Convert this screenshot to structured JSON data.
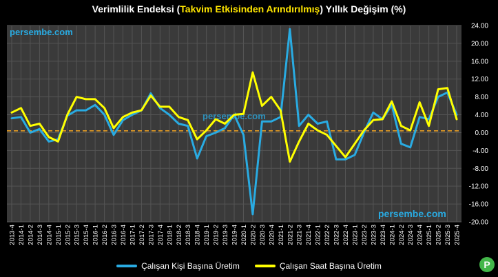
{
  "title": {
    "part1": "Verimlilik Endeksi (",
    "highlight": "Takvim Etkisinden Arındırılmış",
    "part2": ") Yıllık Değişim (%)"
  },
  "watermarks": [
    "persembe.com",
    "persembe.com",
    "persembe.com"
  ],
  "logo_letter": "P",
  "colors": {
    "background": "#000000",
    "plot_background": "#3a3a3a",
    "grid": "#555555",
    "series_person": "#29abe2",
    "series_hour": "#ffff00",
    "zero_line": "#f5a623",
    "watermark": "#29abe2"
  },
  "chart_data": {
    "type": "line",
    "title": "Verimlilik Endeksi (Takvim Etkisinden Arındırılmış) Yıllık Değişim (%)",
    "xlabel": "",
    "ylabel": "",
    "ylim": [
      -20,
      24
    ],
    "yticks": [
      "24.00",
      "20.00",
      "16.00",
      "12.00",
      "8.00",
      "4.00",
      "0.00",
      "-4.00",
      "-8.00",
      "-12.00",
      "-16.00",
      "-20.00"
    ],
    "grid": true,
    "legend_position": "bottom",
    "reference_line": 0.4,
    "categories": [
      "2013-4",
      "2014-1",
      "2014-2",
      "2014-3",
      "2014-4",
      "2015-1",
      "2015-2",
      "2015-3",
      "2015-4",
      "2016-1",
      "2016-2",
      "2016-3",
      "2016-4",
      "2017-1",
      "2017-2",
      "2017-3",
      "2017-4",
      "2018-1",
      "2018-2",
      "2018-3",
      "2018-4",
      "2019-1",
      "2019-2",
      "2019-3",
      "2019-4",
      "2020-1",
      "2020-2",
      "2020-3",
      "2020-4",
      "2021-1",
      "2021-2",
      "2021-3",
      "2021-4",
      "2022-1",
      "2022-2",
      "2022-3",
      "2022-4",
      "2023-1",
      "2023-2",
      "2023-3",
      "2023-4",
      "2024-1",
      "2024-2",
      "2024-3",
      "2024-4",
      "2025-1",
      "2025-2",
      "2025-3",
      "2025-4"
    ],
    "series": [
      {
        "name": "Çalışan Kişi Başına Üretim",
        "values": [
          3.2,
          3.5,
          0.0,
          0.8,
          -2.0,
          -1.5,
          3.8,
          5.0,
          5.0,
          6.2,
          4.0,
          -0.5,
          2.8,
          4.0,
          5.0,
          8.8,
          5.5,
          4.0,
          2.0,
          1.5,
          -5.8,
          -0.8,
          0.0,
          1.0,
          4.0,
          -0.5,
          -18.3,
          2.5,
          2.5,
          3.5,
          23.2,
          1.5,
          4.0,
          2.0,
          2.5,
          -6.0,
          -6.0,
          -5.0,
          0.0,
          4.5,
          3.0,
          6.2,
          -2.5,
          -3.3,
          3.5,
          3.0,
          8.0,
          9.0,
          4.0
        ]
      },
      {
        "name": "Çalışan Saat Başına Üretim",
        "values": [
          4.5,
          5.5,
          1.5,
          2.0,
          -1.0,
          -2.0,
          4.0,
          8.0,
          7.5,
          7.5,
          5.5,
          1.0,
          3.5,
          4.5,
          5.0,
          8.3,
          5.8,
          5.8,
          3.5,
          2.8,
          -1.5,
          0.5,
          3.0,
          2.0,
          4.0,
          4.2,
          13.5,
          6.0,
          8.0,
          5.0,
          -6.5,
          -2.0,
          2.0,
          0.5,
          -0.5,
          -3.0,
          -5.5,
          -2.5,
          0.5,
          2.8,
          3.0,
          7.0,
          1.5,
          0.5,
          6.8,
          1.5,
          9.7,
          10.0,
          3.0
        ]
      }
    ]
  }
}
